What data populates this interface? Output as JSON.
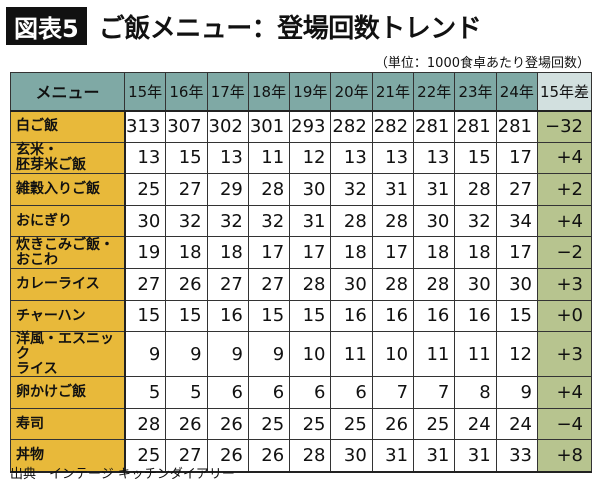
{
  "header": {
    "badge": "図表5",
    "title": "ご飯メニュー：登場回数トレンド",
    "unit": "（単位：1000食卓あたり登場回数）"
  },
  "chart_data": {
    "type": "table",
    "columns": [
      "メニュー",
      "15年",
      "16年",
      "17年",
      "18年",
      "19年",
      "20年",
      "21年",
      "22年",
      "23年",
      "24年",
      "15年差"
    ],
    "rows": [
      {
        "menu": "白ご飯",
        "values": [
          313,
          307,
          302,
          301,
          293,
          282,
          282,
          281,
          281,
          281
        ],
        "diff": "−32"
      },
      {
        "menu": "玄米・\n胚芽米ご飯",
        "values": [
          13,
          15,
          13,
          11,
          12,
          13,
          13,
          13,
          15,
          17
        ],
        "diff": "+4"
      },
      {
        "menu": "雑穀入りご飯",
        "values": [
          25,
          27,
          29,
          28,
          30,
          32,
          31,
          31,
          28,
          27
        ],
        "diff": "+2"
      },
      {
        "menu": "おにぎり",
        "values": [
          30,
          32,
          32,
          32,
          31,
          28,
          28,
          30,
          32,
          34
        ],
        "diff": "+4"
      },
      {
        "menu": "炊きこみご飯・\nおこわ",
        "values": [
          19,
          18,
          18,
          17,
          17,
          18,
          17,
          18,
          18,
          17
        ],
        "diff": "−2"
      },
      {
        "menu": "カレーライス",
        "values": [
          27,
          26,
          27,
          27,
          28,
          30,
          28,
          28,
          30,
          30
        ],
        "diff": "+3"
      },
      {
        "menu": "チャーハン",
        "values": [
          15,
          15,
          16,
          15,
          15,
          16,
          16,
          16,
          16,
          15
        ],
        "diff": "+0"
      },
      {
        "menu": "洋風・エスニック\nライス",
        "values": [
          9,
          9,
          9,
          9,
          10,
          11,
          10,
          11,
          11,
          12
        ],
        "diff": "+3"
      },
      {
        "menu": "卵かけご飯",
        "values": [
          5,
          5,
          6,
          6,
          6,
          6,
          7,
          7,
          8,
          9
        ],
        "diff": "+4"
      },
      {
        "menu": "寿司",
        "values": [
          28,
          26,
          26,
          25,
          25,
          25,
          26,
          25,
          24,
          24
        ],
        "diff": "−4"
      },
      {
        "menu": "丼物",
        "values": [
          25,
          27,
          26,
          26,
          28,
          30,
          31,
          31,
          31,
          33
        ],
        "diff": "+8"
      }
    ],
    "colors": {
      "header": "#7fa9a5",
      "menu": "#e8b93a",
      "diff": "#b7c48f"
    }
  },
  "footer": {
    "source": "出典　インテージ キッチンダイアリー"
  }
}
